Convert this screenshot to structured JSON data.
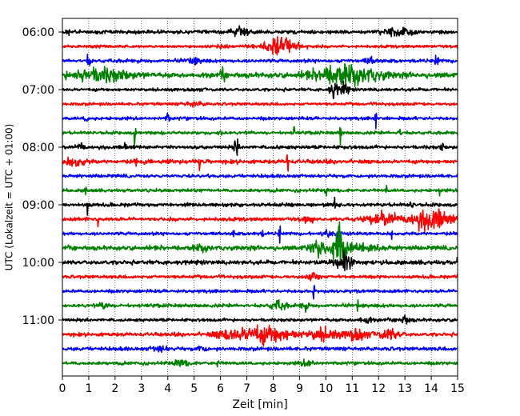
{
  "chart_data": {
    "type": "line",
    "subtype": "helicorder seismogram",
    "xlabel": "Zeit  [min]",
    "ylabel": "UTC (Lokalzeit = UTC + 01:00)",
    "xlim": [
      0,
      15
    ],
    "x_ticks": [
      "0",
      "1",
      "2",
      "3",
      "4",
      "5",
      "6",
      "7",
      "8",
      "9",
      "10",
      "11",
      "12",
      "13",
      "14",
      "15"
    ],
    "y_tick_labels": [
      {
        "row": 0,
        "label": "06:00"
      },
      {
        "row": 4,
        "label": "07:00"
      },
      {
        "row": 8,
        "label": "08:00"
      },
      {
        "row": 12,
        "label": "09:00"
      },
      {
        "row": 16,
        "label": "10:00"
      },
      {
        "row": 20,
        "label": "11:00"
      }
    ],
    "row_minutes": 15,
    "grid": "vertical dotted at every minute",
    "color_cycle": [
      "#000000",
      "#ff0000",
      "#0000ff",
      "#008000"
    ],
    "rows": [
      {
        "start": "06:00",
        "color": "#000000",
        "noise": 2.0,
        "events": [
          {
            "t": 0.2,
            "amp": 5,
            "dur": 0.1
          },
          {
            "t": 6.8,
            "amp": 4,
            "dur": 0.5
          },
          {
            "t": 12.6,
            "amp": 4,
            "dur": 0.6
          },
          {
            "t": 13.2,
            "amp": 3,
            "dur": 0.3
          }
        ]
      },
      {
        "start": "06:15",
        "color": "#ff0000",
        "noise": 1.6,
        "events": [
          {
            "t": 8.2,
            "amp": 10,
            "dur": 0.9
          },
          {
            "t": 6.0,
            "amp": 2,
            "dur": 0.4
          }
        ]
      },
      {
        "start": "06:30",
        "color": "#0000ff",
        "noise": 2.0,
        "events": [
          {
            "t": 1.0,
            "amp": 7,
            "dur": 0.1
          },
          {
            "t": 14.2,
            "amp": 7,
            "dur": 0.1
          },
          {
            "t": 5.0,
            "amp": 3,
            "dur": 0.4
          },
          {
            "t": 11.7,
            "amp": 3,
            "dur": 0.3
          }
        ]
      },
      {
        "start": "06:45",
        "color": "#008000",
        "noise": 2.8,
        "events": [
          {
            "t": 1.4,
            "amp": 7,
            "dur": 1.6
          },
          {
            "t": 6.1,
            "amp": 8,
            "dur": 0.1
          },
          {
            "t": 10.8,
            "amp": 11,
            "dur": 1.6
          }
        ]
      },
      {
        "start": "07:00",
        "color": "#000000",
        "noise": 1.8,
        "events": [
          {
            "t": 10.3,
            "amp": 10,
            "dur": 0.2
          },
          {
            "t": 10.7,
            "amp": 8,
            "dur": 0.2
          }
        ]
      },
      {
        "start": "07:15",
        "color": "#ff0000",
        "noise": 1.6,
        "events": [
          {
            "t": 5.0,
            "amp": 2,
            "dur": 0.5
          }
        ]
      },
      {
        "start": "07:30",
        "color": "#0000ff",
        "noise": 1.8,
        "events": [
          {
            "t": 0.9,
            "amp": 4,
            "dur": 0.1
          },
          {
            "t": 4.0,
            "amp": 5,
            "dur": 0.1
          },
          {
            "t": 11.9,
            "amp": 16,
            "dur": 0.05
          }
        ]
      },
      {
        "start": "07:45",
        "color": "#008000",
        "noise": 1.8,
        "events": [
          {
            "t": 2.75,
            "amp": 18,
            "dur": 0.05
          },
          {
            "t": 6.0,
            "amp": 5,
            "dur": 0.1
          },
          {
            "t": 8.8,
            "amp": 7,
            "dur": 0.05
          },
          {
            "t": 10.55,
            "amp": 18,
            "dur": 0.05
          },
          {
            "t": 12.8,
            "amp": 5,
            "dur": 0.1
          }
        ]
      },
      {
        "start": "08:00",
        "color": "#000000",
        "noise": 2.0,
        "events": [
          {
            "t": 0.7,
            "amp": 6,
            "dur": 0.2
          },
          {
            "t": 2.4,
            "amp": 9,
            "dur": 0.05
          },
          {
            "t": 6.55,
            "amp": 10,
            "dur": 0.05
          },
          {
            "t": 6.65,
            "amp": 13,
            "dur": 0.05
          },
          {
            "t": 8.2,
            "amp": 6,
            "dur": 0.05
          },
          {
            "t": 14.4,
            "amp": 4,
            "dur": 0.1
          }
        ]
      },
      {
        "start": "08:15",
        "color": "#ff0000",
        "noise": 2.2,
        "events": [
          {
            "t": 0.5,
            "amp": 5,
            "dur": 0.5
          },
          {
            "t": 5.2,
            "amp": 10,
            "dur": 0.05
          },
          {
            "t": 8.55,
            "amp": 18,
            "dur": 0.05
          },
          {
            "t": 2.8,
            "amp": 5,
            "dur": 0.05
          },
          {
            "t": 4.0,
            "amp": 4,
            "dur": 0.05
          }
        ]
      },
      {
        "start": "08:30",
        "color": "#0000ff",
        "noise": 1.8,
        "events": []
      },
      {
        "start": "08:45",
        "color": "#008000",
        "noise": 1.8,
        "events": [
          {
            "t": 0.9,
            "amp": 7,
            "dur": 0.05
          },
          {
            "t": 10.0,
            "amp": 8,
            "dur": 0.05
          },
          {
            "t": 12.3,
            "amp": 6,
            "dur": 0.05
          },
          {
            "t": 14.3,
            "amp": 6,
            "dur": 0.05
          }
        ]
      },
      {
        "start": "09:00",
        "color": "#000000",
        "noise": 2.0,
        "events": [
          {
            "t": 0.95,
            "amp": 16,
            "dur": 0.05
          },
          {
            "t": 10.35,
            "amp": 16,
            "dur": 0.05
          },
          {
            "t": 13.25,
            "amp": 12,
            "dur": 0.05
          }
        ]
      },
      {
        "start": "09:15",
        "color": "#ff0000",
        "noise": 2.0,
        "events": [
          {
            "t": 1.35,
            "amp": 7,
            "dur": 0.05
          },
          {
            "t": 12.3,
            "amp": 6,
            "dur": 1.0
          },
          {
            "t": 14.0,
            "amp": 12,
            "dur": 1.0
          },
          {
            "t": 9.4,
            "amp": 3,
            "dur": 0.4
          }
        ]
      },
      {
        "start": "09:30",
        "color": "#0000ff",
        "noise": 1.8,
        "events": [
          {
            "t": 6.5,
            "amp": 6,
            "dur": 0.05
          },
          {
            "t": 7.3,
            "amp": 6,
            "dur": 0.05
          },
          {
            "t": 7.6,
            "amp": 4,
            "dur": 0.05
          },
          {
            "t": 8.25,
            "amp": 12,
            "dur": 0.05
          },
          {
            "t": 10.2,
            "amp": 4,
            "dur": 0.5
          },
          {
            "t": 12.5,
            "amp": 6,
            "dur": 0.05
          }
        ]
      },
      {
        "start": "09:45",
        "color": "#008000",
        "noise": 2.4,
        "events": [
          {
            "t": 9.7,
            "amp": 10,
            "dur": 0.5
          },
          {
            "t": 10.5,
            "amp": 22,
            "dur": 0.35
          },
          {
            "t": 11.2,
            "amp": 5,
            "dur": 1.2
          },
          {
            "t": 5.3,
            "amp": 3,
            "dur": 0.5
          }
        ]
      },
      {
        "start": "10:00",
        "color": "#000000",
        "noise": 2.4,
        "events": [
          {
            "t": 10.7,
            "amp": 9,
            "dur": 0.4
          },
          {
            "t": 15.0,
            "amp": 5,
            "dur": 0.05
          }
        ]
      },
      {
        "start": "10:15",
        "color": "#ff0000",
        "noise": 1.8,
        "events": [
          {
            "t": 9.5,
            "amp": 5,
            "dur": 0.3
          }
        ]
      },
      {
        "start": "10:30",
        "color": "#0000ff",
        "noise": 1.8,
        "events": [
          {
            "t": 9.55,
            "amp": 8,
            "dur": 0.05
          }
        ]
      },
      {
        "start": "10:45",
        "color": "#008000",
        "noise": 2.0,
        "events": [
          {
            "t": 1.6,
            "amp": 5,
            "dur": 0.2
          },
          {
            "t": 8.2,
            "amp": 5,
            "dur": 0.4
          },
          {
            "t": 9.2,
            "amp": 4,
            "dur": 0.2
          },
          {
            "t": 11.2,
            "amp": 8,
            "dur": 0.05
          }
        ]
      },
      {
        "start": "11:00",
        "color": "#000000",
        "noise": 1.8,
        "events": [
          {
            "t": 11.5,
            "amp": 4,
            "dur": 0.3
          },
          {
            "t": 13.0,
            "amp": 4,
            "dur": 0.3
          }
        ]
      },
      {
        "start": "11:15",
        "color": "#ff0000",
        "noise": 2.0,
        "events": [
          {
            "t": 7.7,
            "amp": 10,
            "dur": 1.5
          },
          {
            "t": 9.9,
            "amp": 7,
            "dur": 0.7
          },
          {
            "t": 11.1,
            "amp": 6,
            "dur": 0.6
          },
          {
            "t": 12.4,
            "amp": 6,
            "dur": 0.6
          },
          {
            "t": 6.3,
            "amp": 4,
            "dur": 0.8
          }
        ]
      },
      {
        "start": "11:30",
        "color": "#0000ff",
        "noise": 2.0,
        "events": [
          {
            "t": 3.7,
            "amp": 3,
            "dur": 0.4
          },
          {
            "t": 5.3,
            "amp": 4,
            "dur": 0.2
          }
        ]
      },
      {
        "start": "11:45",
        "color": "#008000",
        "noise": 1.8,
        "events": [
          {
            "t": 5.9,
            "amp": 5,
            "dur": 0.05
          },
          {
            "t": 4.5,
            "amp": 3,
            "dur": 0.4
          },
          {
            "t": 9.3,
            "amp": 3,
            "dur": 0.4
          }
        ]
      }
    ]
  }
}
